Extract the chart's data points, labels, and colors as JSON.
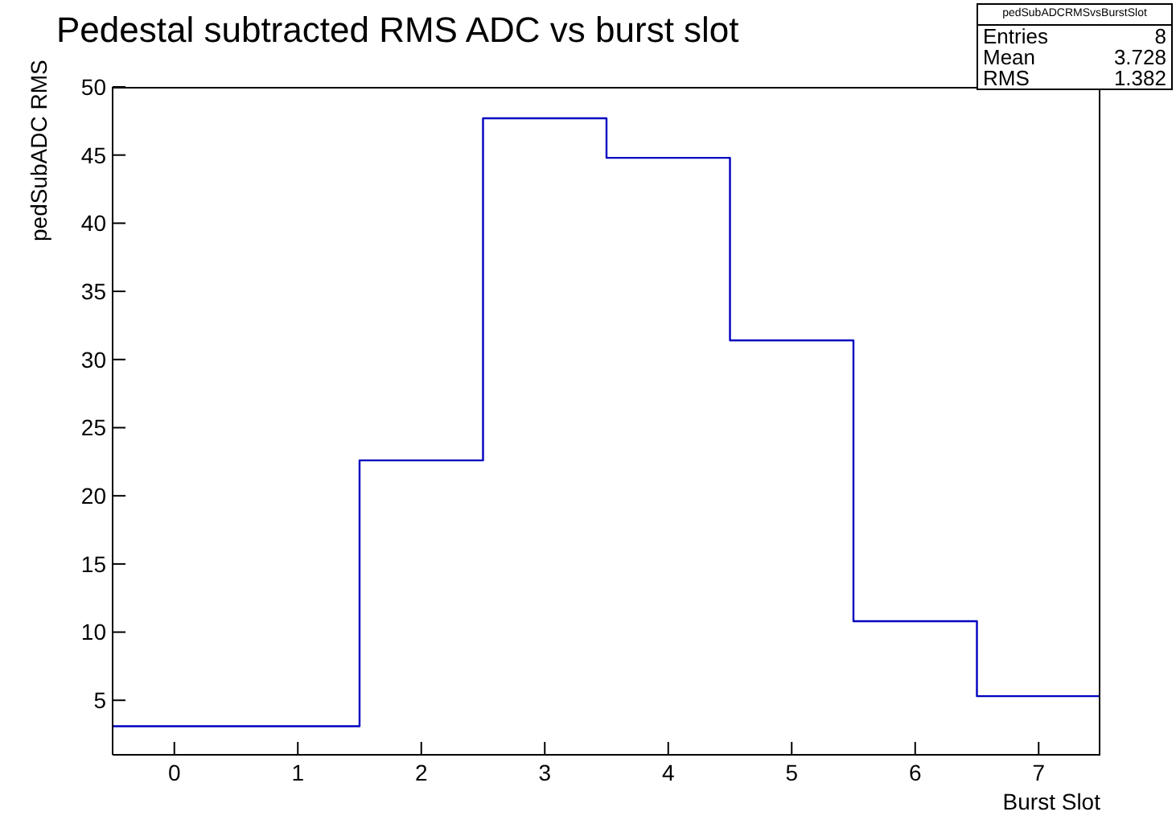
{
  "chart_data": {
    "type": "histogram",
    "title": "Pedestal subtracted RMS ADC vs burst slot",
    "xlabel": "Burst Slot",
    "ylabel": "pedSubADC RMS",
    "bins": [
      -0.5,
      0.5,
      1.5,
      2.5,
      3.5,
      4.5,
      5.5,
      6.5,
      7.5
    ],
    "values": [
      3.1,
      3.1,
      22.6,
      47.7,
      44.8,
      31.4,
      10.8,
      5.3
    ],
    "color": "#0000c0",
    "xlim": [
      -0.5,
      7.5
    ],
    "xticks": [
      0,
      1,
      2,
      3,
      4,
      5,
      6,
      7
    ],
    "ylim": [
      1,
      50
    ],
    "yticks": [
      5,
      10,
      15,
      20,
      25,
      30,
      35,
      40,
      45,
      50
    ],
    "grid": false,
    "annotations": [
      "pedSubADCRMSvsBurstSlot",
      "Entries 8",
      "Mean 3.728",
      "RMS 1.382"
    ]
  }
}
